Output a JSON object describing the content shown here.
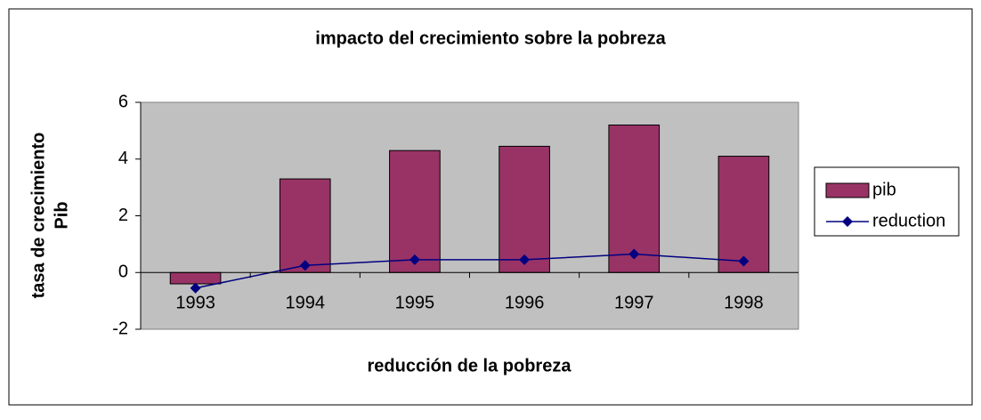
{
  "chart_data": {
    "type": "bar_line",
    "title": "impacto del crecimiento sobre la pobreza",
    "x_label": "reducción de la pobreza",
    "y_label_lines": [
      "tasa de crecimiento",
      "Pib"
    ],
    "categories": [
      "1993",
      "1994",
      "1995",
      "1996",
      "1997",
      "1998"
    ],
    "series": [
      {
        "name": "pib",
        "type": "bar",
        "color": "#993366",
        "values": [
          -0.4,
          3.3,
          4.3,
          4.45,
          5.2,
          4.1
        ]
      },
      {
        "name": "reduction",
        "type": "line",
        "color": "#000080",
        "values": [
          -0.55,
          0.25,
          0.45,
          0.45,
          0.65,
          0.4
        ]
      }
    ],
    "ylim": [
      -2,
      6
    ],
    "yticks": [
      -2,
      0,
      2,
      4,
      6
    ],
    "grid": false,
    "legend": "right"
  }
}
